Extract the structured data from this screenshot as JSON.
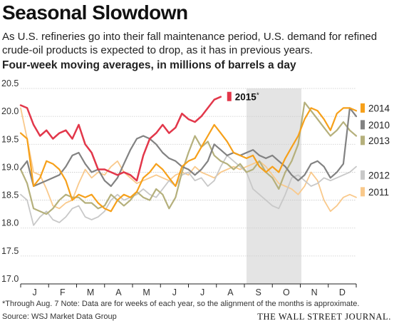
{
  "header": {
    "title": "Seasonal Slowdown",
    "subtitle": "As U.S. refineries go into their fall maintenance period, U.S. demand for refined crude-oil products is expected to drop, as it has in previous years.",
    "units": "Four-week moving averages, in millions of barrels a day"
  },
  "footer": {
    "note": "*Through Aug. 7   Note: Data are for weeks of each year, so the alignment of the months is approximate.",
    "source": "Source: WSJ Market Data Group",
    "brand": "THE WALL STREET JOURNAL."
  },
  "chart_data": {
    "type": "line",
    "title": "Seasonal Slowdown",
    "xlabel": "",
    "ylabel": "",
    "ylim": [
      17.0,
      20.5
    ],
    "yticks": [
      17.0,
      17.5,
      18.0,
      18.5,
      19.0,
      19.5,
      20.0,
      20.5
    ],
    "xlim": [
      0,
      52
    ],
    "month_labels": [
      "J",
      "F",
      "M",
      "A",
      "M",
      "J",
      "J",
      "A",
      "S",
      "O",
      "N",
      "D"
    ],
    "grid": true,
    "shaded_period": {
      "from": 35,
      "to": 43.5
    },
    "legend_placement": "right",
    "series": [
      {
        "name": "2011",
        "color": "#f9c98b",
        "width": 1.8,
        "values": [
          [
            0,
            20.15
          ],
          [
            1,
            19.6
          ],
          [
            2,
            19.0
          ],
          [
            3,
            18.95
          ],
          [
            4,
            18.7
          ],
          [
            5,
            18.4
          ],
          [
            6,
            18.35
          ],
          [
            7,
            18.45
          ],
          [
            8,
            18.5
          ],
          [
            9,
            18.8
          ],
          [
            10,
            19.05
          ],
          [
            11,
            18.9
          ],
          [
            12,
            19.0
          ],
          [
            13,
            18.95
          ],
          [
            14,
            19.1
          ],
          [
            15,
            19.2
          ],
          [
            16,
            19.0
          ],
          [
            17,
            18.9
          ],
          [
            18,
            18.8
          ],
          [
            19,
            18.85
          ],
          [
            20,
            18.9
          ],
          [
            21,
            18.95
          ],
          [
            22,
            18.9
          ],
          [
            23,
            18.85
          ],
          [
            24,
            18.95
          ],
          [
            25,
            19.0
          ],
          [
            26,
            18.95
          ],
          [
            27,
            19.1
          ],
          [
            28,
            19.0
          ],
          [
            29,
            18.95
          ],
          [
            30,
            18.9
          ],
          [
            31,
            19.0
          ],
          [
            32,
            19.05
          ],
          [
            33,
            19.1
          ],
          [
            34,
            19.05
          ],
          [
            35,
            19.1
          ],
          [
            36,
            19.15
          ],
          [
            37,
            19.2
          ],
          [
            38,
            19.1
          ],
          [
            39,
            18.95
          ],
          [
            40,
            18.8
          ],
          [
            41,
            18.75
          ],
          [
            42,
            18.7
          ],
          [
            43,
            18.6
          ],
          [
            44,
            18.75
          ],
          [
            45,
            19.0
          ],
          [
            46,
            18.85
          ],
          [
            47,
            18.5
          ],
          [
            48,
            18.3
          ],
          [
            49,
            18.4
          ],
          [
            50,
            18.55
          ],
          [
            51,
            18.6
          ],
          [
            52,
            18.55
          ]
        ]
      },
      {
        "name": "2012",
        "color": "#c8c8c8",
        "width": 1.8,
        "values": [
          [
            0,
            18.6
          ],
          [
            1,
            18.5
          ],
          [
            2,
            18.05
          ],
          [
            3,
            18.2
          ],
          [
            4,
            18.3
          ],
          [
            5,
            18.15
          ],
          [
            6,
            18.1
          ],
          [
            7,
            18.2
          ],
          [
            8,
            18.35
          ],
          [
            9,
            18.4
          ],
          [
            10,
            18.2
          ],
          [
            11,
            18.15
          ],
          [
            12,
            18.2
          ],
          [
            13,
            18.3
          ],
          [
            14,
            18.5
          ],
          [
            15,
            18.6
          ],
          [
            16,
            18.5
          ],
          [
            17,
            18.55
          ],
          [
            18,
            18.6
          ],
          [
            19,
            18.7
          ],
          [
            20,
            18.6
          ],
          [
            21,
            18.55
          ],
          [
            22,
            18.7
          ],
          [
            23,
            18.85
          ],
          [
            24,
            18.75
          ],
          [
            25,
            18.95
          ],
          [
            26,
            19.0
          ],
          [
            27,
            18.85
          ],
          [
            28,
            18.9
          ],
          [
            29,
            18.75
          ],
          [
            30,
            18.85
          ],
          [
            31,
            19.1
          ],
          [
            32,
            19.3
          ],
          [
            33,
            19.2
          ],
          [
            34,
            19.1
          ],
          [
            35,
            19.0
          ],
          [
            36,
            18.7
          ],
          [
            37,
            18.6
          ],
          [
            38,
            18.5
          ],
          [
            39,
            18.4
          ],
          [
            40,
            18.35
          ],
          [
            41,
            18.6
          ],
          [
            42,
            18.9
          ],
          [
            43,
            18.95
          ],
          [
            44,
            18.85
          ],
          [
            45,
            18.75
          ],
          [
            46,
            18.8
          ],
          [
            47,
            18.9
          ],
          [
            48,
            18.85
          ],
          [
            49,
            18.9
          ],
          [
            50,
            18.95
          ],
          [
            51,
            19.0
          ],
          [
            52,
            19.1
          ]
        ]
      },
      {
        "name": "2013",
        "color": "#b5b07c",
        "width": 2.2,
        "values": [
          [
            0,
            19.05
          ],
          [
            1,
            18.8
          ],
          [
            2,
            18.35
          ],
          [
            3,
            18.3
          ],
          [
            4,
            18.25
          ],
          [
            5,
            18.35
          ],
          [
            6,
            18.5
          ],
          [
            7,
            18.6
          ],
          [
            8,
            18.55
          ],
          [
            9,
            18.55
          ],
          [
            10,
            18.45
          ],
          [
            11,
            18.45
          ],
          [
            12,
            18.35
          ],
          [
            13,
            18.4
          ],
          [
            14,
            18.6
          ],
          [
            15,
            18.5
          ],
          [
            16,
            18.4
          ],
          [
            17,
            18.5
          ],
          [
            18,
            18.65
          ],
          [
            19,
            18.55
          ],
          [
            20,
            18.5
          ],
          [
            21,
            18.7
          ],
          [
            22,
            18.6
          ],
          [
            23,
            18.35
          ],
          [
            24,
            18.55
          ],
          [
            25,
            19.0
          ],
          [
            26,
            19.35
          ],
          [
            27,
            19.65
          ],
          [
            28,
            19.45
          ],
          [
            29,
            19.55
          ],
          [
            30,
            19.3
          ],
          [
            31,
            19.2
          ],
          [
            32,
            19.15
          ],
          [
            33,
            19.05
          ],
          [
            34,
            19.15
          ],
          [
            35,
            19.0
          ],
          [
            36,
            19.05
          ],
          [
            37,
            19.2
          ],
          [
            38,
            19.0
          ],
          [
            39,
            18.9
          ],
          [
            40,
            18.7
          ],
          [
            41,
            19.0
          ],
          [
            42,
            19.2
          ],
          [
            43,
            19.5
          ],
          [
            44,
            20.25
          ],
          [
            45,
            20.1
          ],
          [
            46,
            19.95
          ],
          [
            47,
            19.8
          ],
          [
            48,
            19.65
          ],
          [
            49,
            19.75
          ],
          [
            50,
            19.9
          ],
          [
            51,
            19.75
          ],
          [
            52,
            19.65
          ]
        ]
      },
      {
        "name": "2010",
        "color": "#828282",
        "width": 2.2,
        "values": [
          [
            0,
            19.05
          ],
          [
            1,
            19.2
          ],
          [
            2,
            18.75
          ],
          [
            3,
            18.8
          ],
          [
            4,
            18.85
          ],
          [
            5,
            18.9
          ],
          [
            6,
            18.95
          ],
          [
            7,
            19.1
          ],
          [
            8,
            19.3
          ],
          [
            9,
            19.35
          ],
          [
            10,
            19.15
          ],
          [
            11,
            19.0
          ],
          [
            12,
            19.05
          ],
          [
            13,
            18.85
          ],
          [
            14,
            18.75
          ],
          [
            15,
            18.9
          ],
          [
            16,
            19.15
          ],
          [
            17,
            19.4
          ],
          [
            18,
            19.6
          ],
          [
            19,
            19.65
          ],
          [
            20,
            19.6
          ],
          [
            21,
            19.5
          ],
          [
            22,
            19.35
          ],
          [
            23,
            19.25
          ],
          [
            24,
            19.2
          ],
          [
            25,
            19.1
          ],
          [
            26,
            19.05
          ],
          [
            27,
            18.95
          ],
          [
            28,
            19.05
          ],
          [
            29,
            19.2
          ],
          [
            30,
            19.5
          ],
          [
            31,
            19.4
          ],
          [
            32,
            19.3
          ],
          [
            33,
            19.35
          ],
          [
            34,
            19.3
          ],
          [
            35,
            19.35
          ],
          [
            36,
            19.4
          ],
          [
            37,
            19.3
          ],
          [
            38,
            19.25
          ],
          [
            39,
            19.3
          ],
          [
            40,
            19.2
          ],
          [
            41,
            19.1
          ],
          [
            42,
            18.95
          ],
          [
            43,
            18.85
          ],
          [
            44,
            18.95
          ],
          [
            45,
            19.15
          ],
          [
            46,
            19.2
          ],
          [
            47,
            19.1
          ],
          [
            48,
            18.9
          ],
          [
            49,
            19.0
          ],
          [
            50,
            19.15
          ],
          [
            51,
            20.15
          ],
          [
            52,
            20.0
          ]
        ]
      },
      {
        "name": "2014",
        "color": "#f6a01a",
        "width": 2.2,
        "values": [
          [
            0,
            19.7
          ],
          [
            1,
            19.6
          ],
          [
            2,
            18.75
          ],
          [
            3,
            18.9
          ],
          [
            4,
            19.2
          ],
          [
            5,
            19.15
          ],
          [
            6,
            19.05
          ],
          [
            7,
            18.85
          ],
          [
            8,
            18.5
          ],
          [
            9,
            18.6
          ],
          [
            10,
            18.55
          ],
          [
            11,
            18.6
          ],
          [
            12,
            18.45
          ],
          [
            13,
            18.35
          ],
          [
            14,
            18.3
          ],
          [
            15,
            18.5
          ],
          [
            16,
            18.6
          ],
          [
            17,
            18.55
          ],
          [
            18,
            18.65
          ],
          [
            19,
            18.9
          ],
          [
            20,
            19.0
          ],
          [
            21,
            19.15
          ],
          [
            22,
            19.05
          ],
          [
            23,
            18.9
          ],
          [
            24,
            18.75
          ],
          [
            25,
            19.1
          ],
          [
            26,
            19.2
          ],
          [
            27,
            19.25
          ],
          [
            28,
            19.45
          ],
          [
            29,
            19.65
          ],
          [
            30,
            19.85
          ],
          [
            31,
            19.7
          ],
          [
            32,
            19.55
          ],
          [
            33,
            19.35
          ],
          [
            34,
            19.3
          ],
          [
            35,
            19.25
          ],
          [
            36,
            19.3
          ],
          [
            37,
            19.1
          ],
          [
            38,
            19.0
          ],
          [
            39,
            19.1
          ],
          [
            40,
            19.0
          ],
          [
            41,
            19.25
          ],
          [
            42,
            19.45
          ],
          [
            43,
            19.65
          ],
          [
            44,
            19.95
          ],
          [
            45,
            20.15
          ],
          [
            46,
            20.1
          ],
          [
            47,
            19.95
          ],
          [
            48,
            19.75
          ],
          [
            49,
            20.05
          ],
          [
            50,
            20.15
          ],
          [
            51,
            20.15
          ],
          [
            52,
            20.1
          ]
        ]
      },
      {
        "name": "2015",
        "color": "#e2374a",
        "width": 2.5,
        "values": [
          [
            0,
            20.2
          ],
          [
            1,
            20.15
          ],
          [
            2,
            19.85
          ],
          [
            3,
            19.65
          ],
          [
            4,
            19.75
          ],
          [
            5,
            19.6
          ],
          [
            6,
            19.7
          ],
          [
            7,
            19.75
          ],
          [
            8,
            19.6
          ],
          [
            9,
            19.85
          ],
          [
            10,
            19.5
          ],
          [
            11,
            19.35
          ],
          [
            12,
            19.05
          ],
          [
            13,
            19.05
          ],
          [
            14,
            19.0
          ],
          [
            15,
            18.95
          ],
          [
            16,
            19.0
          ],
          [
            17,
            18.95
          ],
          [
            18,
            18.85
          ],
          [
            19,
            19.3
          ],
          [
            20,
            19.6
          ],
          [
            21,
            19.7
          ],
          [
            22,
            19.85
          ],
          [
            23,
            19.7
          ],
          [
            24,
            19.8
          ],
          [
            25,
            20.05
          ],
          [
            26,
            19.95
          ],
          [
            27,
            19.9
          ],
          [
            28,
            20.0
          ],
          [
            29,
            20.15
          ],
          [
            30,
            20.3
          ],
          [
            31,
            20.35
          ]
        ]
      }
    ],
    "legend": [
      {
        "name": "2015",
        "mark": "*",
        "color": "#e2374a",
        "position": "inline-end"
      },
      {
        "name": "2014",
        "color": "#f6a01a",
        "position": "right"
      },
      {
        "name": "2010",
        "color": "#828282",
        "position": "right"
      },
      {
        "name": "2013",
        "color": "#b5b07c",
        "position": "right"
      },
      {
        "name": "2012",
        "color": "#c8c8c8",
        "position": "right"
      },
      {
        "name": "2011",
        "color": "#f9c98b",
        "position": "right"
      }
    ]
  }
}
